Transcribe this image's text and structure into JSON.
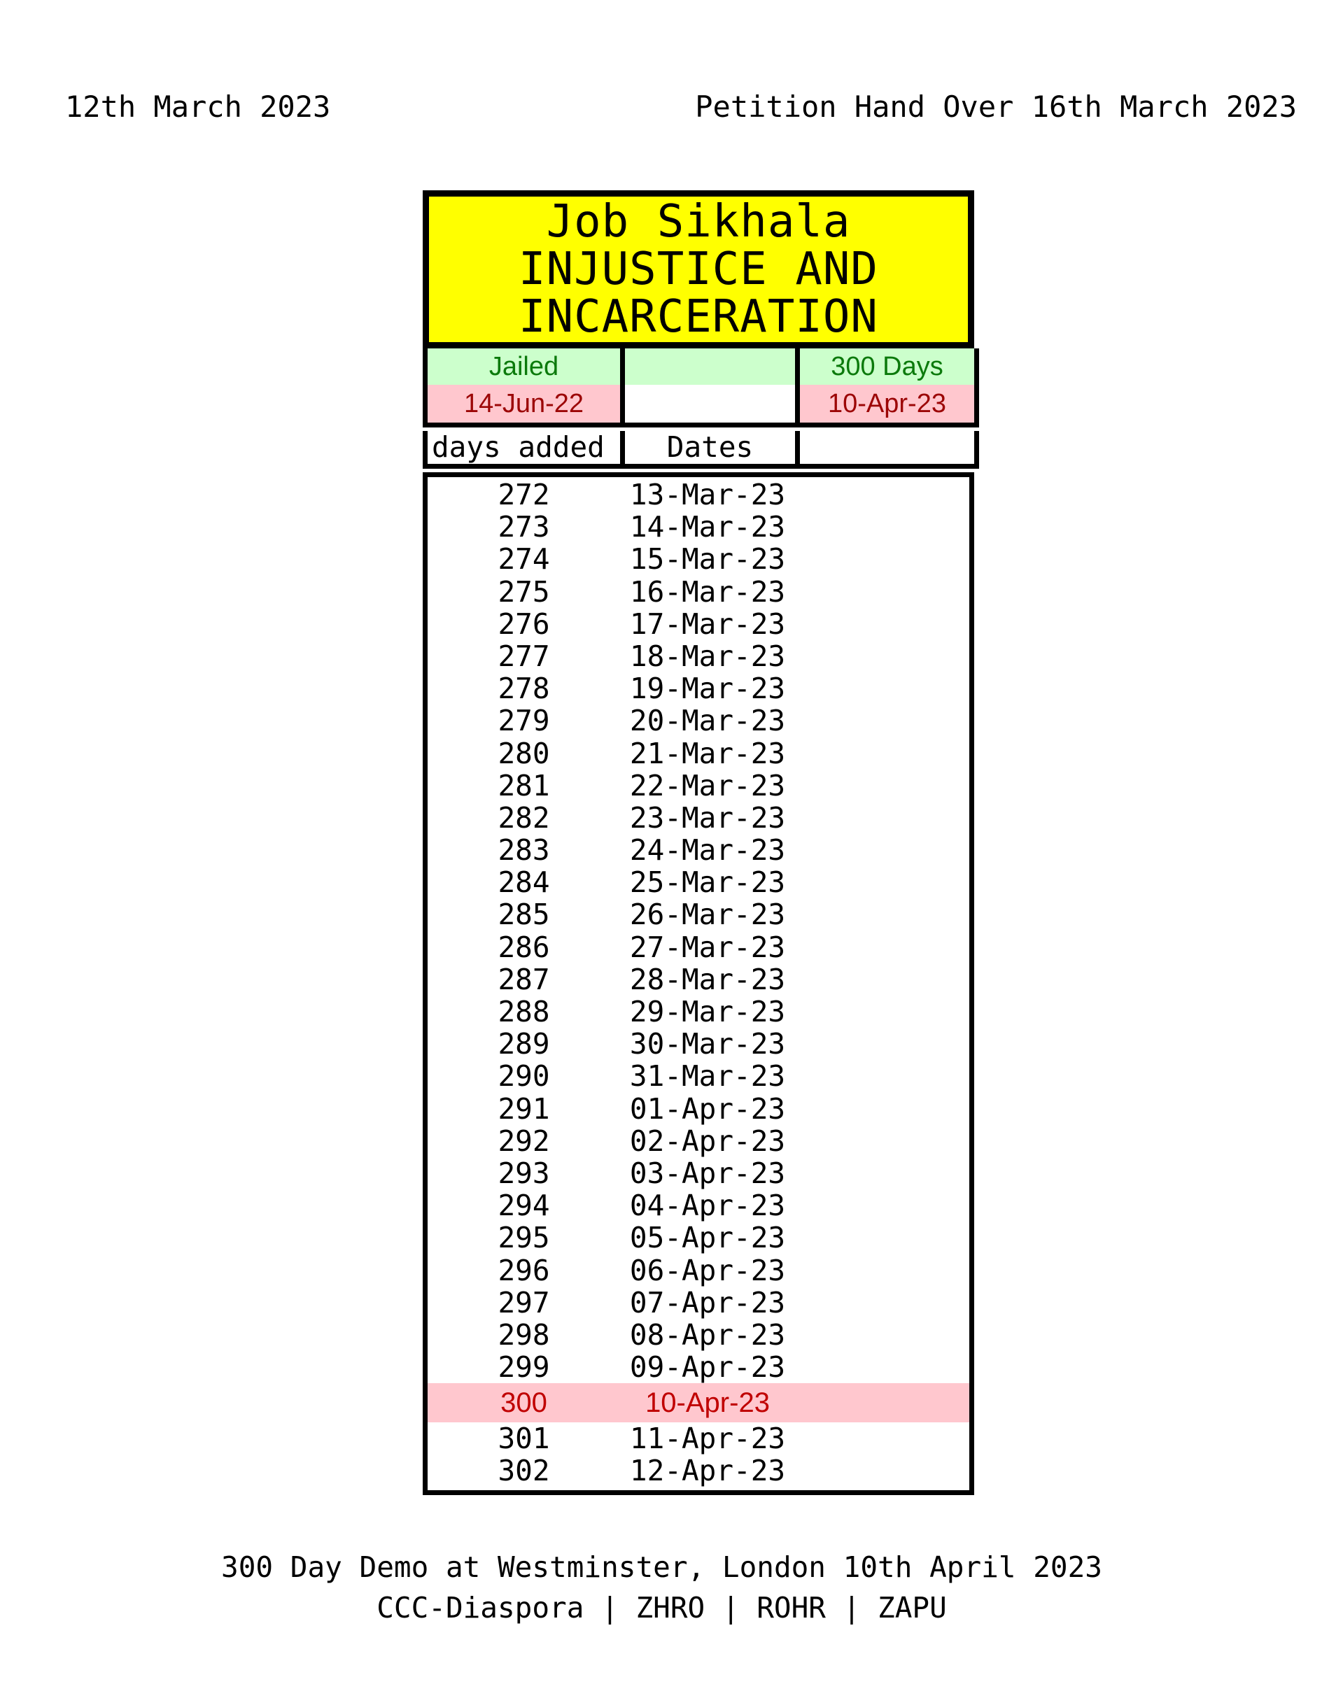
{
  "header": {
    "date_left": "12th March 2023",
    "petition_right": "Petition Hand Over 16th March 2023"
  },
  "title": {
    "line1": "Job Sikhala",
    "line2": "INJUSTICE AND",
    "line3": "INCARCERATION"
  },
  "status": {
    "jailed_label": "Jailed",
    "jailed_date": "14-Jun-22",
    "milestone_label": "300 Days",
    "milestone_date": "10-Apr-23"
  },
  "columns": {
    "days_added": "days added",
    "dates": "Dates"
  },
  "highlight_day": 300,
  "rows": [
    {
      "day": 272,
      "date": "13-Mar-23"
    },
    {
      "day": 273,
      "date": "14-Mar-23"
    },
    {
      "day": 274,
      "date": "15-Mar-23"
    },
    {
      "day": 275,
      "date": "16-Mar-23"
    },
    {
      "day": 276,
      "date": "17-Mar-23"
    },
    {
      "day": 277,
      "date": "18-Mar-23"
    },
    {
      "day": 278,
      "date": "19-Mar-23"
    },
    {
      "day": 279,
      "date": "20-Mar-23"
    },
    {
      "day": 280,
      "date": "21-Mar-23"
    },
    {
      "day": 281,
      "date": "22-Mar-23"
    },
    {
      "day": 282,
      "date": "23-Mar-23"
    },
    {
      "day": 283,
      "date": "24-Mar-23"
    },
    {
      "day": 284,
      "date": "25-Mar-23"
    },
    {
      "day": 285,
      "date": "26-Mar-23"
    },
    {
      "day": 286,
      "date": "27-Mar-23"
    },
    {
      "day": 287,
      "date": "28-Mar-23"
    },
    {
      "day": 288,
      "date": "29-Mar-23"
    },
    {
      "day": 289,
      "date": "30-Mar-23"
    },
    {
      "day": 290,
      "date": "31-Mar-23"
    },
    {
      "day": 291,
      "date": "01-Apr-23"
    },
    {
      "day": 292,
      "date": "02-Apr-23"
    },
    {
      "day": 293,
      "date": "03-Apr-23"
    },
    {
      "day": 294,
      "date": "04-Apr-23"
    },
    {
      "day": 295,
      "date": "05-Apr-23"
    },
    {
      "day": 296,
      "date": "06-Apr-23"
    },
    {
      "day": 297,
      "date": "07-Apr-23"
    },
    {
      "day": 298,
      "date": "08-Apr-23"
    },
    {
      "day": 299,
      "date": "09-Apr-23"
    },
    {
      "day": 300,
      "date": "10-Apr-23"
    },
    {
      "day": 301,
      "date": "11-Apr-23"
    },
    {
      "day": 302,
      "date": "12-Apr-23"
    }
  ],
  "footer": {
    "line1": "300 Day Demo at Westminster, London 10th April 2023",
    "line2": "CCC-Diaspora | ZHRO | ROHR | ZAPU"
  },
  "colors": {
    "title_bg": "#FFFF00",
    "good_bg": "#CCFFCC",
    "good_text": "#0B7A0B",
    "bad_bg": "#FFC7CE",
    "bad_text": "#9C0606",
    "highlight_bg": "#FFC7CE",
    "highlight_text": "#C00000",
    "border": "#000000"
  }
}
